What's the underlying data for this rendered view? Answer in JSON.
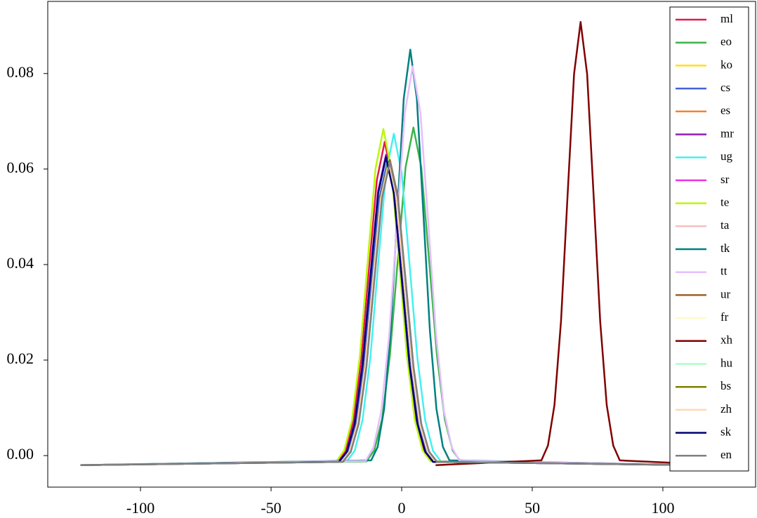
{
  "chart_data": {
    "type": "line",
    "xlim": [
      -135.5,
      135.5
    ],
    "ylim": [
      -0.0066,
      0.0951
    ],
    "xticks": [
      -100,
      -50,
      0,
      50,
      100
    ],
    "yticks": [
      {
        "value": 0,
        "label": "0.00"
      },
      {
        "value": 0.02,
        "label": "0.02"
      },
      {
        "value": 0.04,
        "label": "0.04"
      },
      {
        "value": 0.06,
        "label": "0.06"
      },
      {
        "value": 0.08,
        "label": "0.08"
      }
    ],
    "grid": false,
    "legend": "upper right",
    "series": [
      {
        "name": "ml",
        "color": "#e6194b",
        "x": [
          -123,
          -24.5,
          -21.5,
          -18.5,
          -15.5,
          -12.5,
          -9.5,
          -6.5,
          -3.5,
          -0.5,
          2.5,
          5.5,
          8.5,
          11.5,
          115
        ],
        "values": [
          -0.002,
          -0.0012,
          0.001,
          0.0072,
          0.02,
          0.0391,
          0.0577,
          0.0657,
          0.0577,
          0.0391,
          0.02,
          0.0072,
          0.001,
          -0.0012,
          -0.002
        ]
      },
      {
        "name": "eo",
        "color": "#3cb44b",
        "x": [
          -123,
          -13.5,
          -10.5,
          -7.5,
          -4.5,
          -1.5,
          1.5,
          4.5,
          7.5,
          10.5,
          13.5,
          16.5,
          19.5,
          22.5,
          115
        ],
        "values": [
          -0.002,
          -0.0012,
          0.0011,
          0.0076,
          0.021,
          0.0409,
          0.0604,
          0.0687,
          0.0604,
          0.0409,
          0.021,
          0.0076,
          0.0011,
          -0.0012,
          -0.002
        ]
      },
      {
        "name": "ko",
        "color": "#ffe119",
        "x": [
          -123,
          -23,
          -20,
          -17,
          -14,
          -11,
          -8,
          -5,
          -2,
          1,
          4,
          7,
          10,
          13,
          115
        ],
        "values": [
          -0.002,
          -0.0013,
          0.0008,
          0.0065,
          0.0185,
          0.0362,
          0.0536,
          0.061,
          0.0536,
          0.0362,
          0.0185,
          0.0065,
          0.0008,
          -0.0013,
          -0.002
        ]
      },
      {
        "name": "cs",
        "color": "#4363d8",
        "x": [
          -123,
          -23.5,
          -20.5,
          -17.5,
          -14.5,
          -11.5,
          -8.5,
          -5.5,
          -2.5,
          0.5,
          3.5,
          6.5,
          9.5,
          12.5,
          115
        ],
        "values": [
          -0.002,
          -0.0013,
          0.0008,
          0.0066,
          0.0186,
          0.0365,
          0.054,
          0.0615,
          0.054,
          0.0365,
          0.0186,
          0.0066,
          0.0008,
          -0.0013,
          -0.002
        ]
      },
      {
        "name": "es",
        "color": "#f58231",
        "x": [
          -123,
          -23,
          -20,
          -17,
          -14,
          -11,
          -8,
          -5,
          -2,
          1,
          4,
          7,
          10,
          13,
          115
        ],
        "values": [
          -0.002,
          -0.0013,
          0.0008,
          0.0066,
          0.0185,
          0.0363,
          0.0538,
          0.0612,
          0.0538,
          0.0363,
          0.0185,
          0.0066,
          0.0008,
          -0.0013,
          -0.002
        ]
      },
      {
        "name": "mr",
        "color": "#911eb4",
        "x": [
          -123,
          -24,
          -21,
          -18,
          -15,
          -12,
          -9,
          -6,
          -3,
          0,
          3,
          6,
          9,
          12,
          115
        ],
        "values": [
          -0.002,
          -0.0013,
          0.0009,
          0.0068,
          0.0191,
          0.0374,
          0.0554,
          0.063,
          0.0554,
          0.0374,
          0.0191,
          0.0068,
          0.0009,
          -0.0013,
          -0.002
        ]
      },
      {
        "name": "ug",
        "color": "#46f0f0",
        "x": [
          -123,
          -21,
          -18,
          -15,
          -12,
          -9,
          -6,
          -3,
          0,
          3,
          6,
          9,
          12,
          15,
          115
        ],
        "values": [
          -0.002,
          -0.0012,
          0.001,
          0.0074,
          0.0205,
          0.0401,
          0.0592,
          0.0674,
          0.0592,
          0.0401,
          0.0205,
          0.0074,
          0.001,
          -0.0012,
          -0.002
        ]
      },
      {
        "name": "sr",
        "color": "#f032e6",
        "x": [
          -123,
          -23,
          -20,
          -17,
          -14,
          -11,
          -8,
          -5,
          -2,
          1,
          4,
          7,
          10,
          13,
          115
        ],
        "values": [
          -0.002,
          -0.0013,
          0.0008,
          0.0066,
          0.0186,
          0.0364,
          0.0539,
          0.0613,
          0.0539,
          0.0364,
          0.0186,
          0.0066,
          0.0008,
          -0.0013,
          -0.002
        ]
      },
      {
        "name": "te",
        "color": "#bcf60c",
        "x": [
          -123,
          -25,
          -22,
          -19,
          -16,
          -13,
          -10,
          -7,
          -4,
          -1,
          2,
          5,
          8,
          11,
          115
        ],
        "values": [
          -0.002,
          -0.0012,
          0.0011,
          0.0075,
          0.0209,
          0.0407,
          0.0601,
          0.0684,
          0.0601,
          0.0407,
          0.0209,
          0.0075,
          0.0011,
          -0.0012,
          -0.002
        ]
      },
      {
        "name": "ta",
        "color": "#fabebe",
        "x": [
          -123,
          -23,
          -20,
          -17,
          -14,
          -11,
          -8,
          -5,
          -2,
          1,
          4,
          7,
          10,
          13,
          115
        ],
        "values": [
          -0.002,
          -0.0013,
          0.0008,
          0.0066,
          0.0186,
          0.0365,
          0.054,
          0.0614,
          0.054,
          0.0365,
          0.0186,
          0.0066,
          0.0008,
          -0.0013,
          -0.002
        ]
      },
      {
        "name": "tk",
        "color": "#008080",
        "x": [
          -123,
          -11.7,
          -9.2,
          -6.7,
          -4.2,
          -1.7,
          0.8,
          3.3,
          5.8,
          8.3,
          10.8,
          13.3,
          15.8,
          18.3,
          115
        ],
        "values": [
          -0.002,
          -0.001,
          0.0018,
          0.0098,
          0.0262,
          0.0508,
          0.0748,
          0.085,
          0.0748,
          0.0508,
          0.0262,
          0.0098,
          0.0018,
          -0.001,
          -0.002
        ]
      },
      {
        "name": "tt",
        "color": "#e6beff",
        "x": [
          -123,
          -13.8,
          -10.8,
          -7.8,
          -4.8,
          -1.8,
          1.2,
          4.2,
          7.2,
          10.2,
          13.2,
          16.2,
          19.2,
          22.2,
          115
        ],
        "values": [
          -0.002,
          -0.0011,
          0.0017,
          0.0093,
          0.0251,
          0.0486,
          0.0717,
          0.0815,
          0.0717,
          0.0486,
          0.0251,
          0.0093,
          0.0017,
          -0.0011,
          -0.002
        ]
      },
      {
        "name": "ur",
        "color": "#9a6324",
        "x": [
          -123,
          -22.5,
          -19.5,
          -16.5,
          -13.5,
          -10.5,
          -7.5,
          -4.5,
          -1.5,
          1.5,
          4.5,
          7.5,
          10.5,
          13.5,
          115
        ],
        "values": [
          -0.002,
          -0.0013,
          0.0008,
          0.0066,
          0.0187,
          0.0368,
          0.0544,
          0.0619,
          0.0544,
          0.0368,
          0.0187,
          0.0066,
          0.0008,
          -0.0013,
          -0.002
        ]
      },
      {
        "name": "fr",
        "color": "#fffac8",
        "x": [
          -123,
          -23,
          -20,
          -17,
          -14,
          -11,
          -8,
          -5,
          -2,
          1,
          4,
          7,
          10,
          13,
          115
        ],
        "values": [
          -0.002,
          -0.0013,
          0.0008,
          0.0065,
          0.0185,
          0.0363,
          0.0537,
          0.0611,
          0.0537,
          0.0363,
          0.0185,
          0.0065,
          0.0008,
          -0.0013,
          -0.002
        ]
      },
      {
        "name": "xh",
        "color": "#800000",
        "x": [
          13,
          53.5,
          56,
          58.5,
          61,
          63.5,
          66,
          68.5,
          71,
          73.5,
          76,
          78.5,
          81,
          83.5,
          124
        ],
        "values": [
          -0.002,
          -0.001,
          0.0021,
          0.0106,
          0.0281,
          0.0543,
          0.0799,
          0.0908,
          0.0799,
          0.0543,
          0.0281,
          0.0106,
          0.0021,
          -0.001,
          -0.002
        ]
      },
      {
        "name": "hu",
        "color": "#aaffc3",
        "x": [
          -123,
          -23,
          -20,
          -17,
          -14,
          -11,
          -8,
          -5,
          -2,
          1,
          4,
          7,
          10,
          13,
          115
        ],
        "values": [
          -0.002,
          -0.0013,
          0.0008,
          0.0066,
          0.0185,
          0.0363,
          0.0538,
          0.0612,
          0.0538,
          0.0363,
          0.0185,
          0.0066,
          0.0008,
          -0.0013,
          -0.002
        ]
      },
      {
        "name": "bs",
        "color": "#808000",
        "x": [
          -123,
          -23,
          -20,
          -17,
          -14,
          -11,
          -8,
          -5,
          -2,
          1,
          4,
          7,
          10,
          13,
          115
        ],
        "values": [
          -0.002,
          -0.0013,
          0.0008,
          0.0066,
          0.0187,
          0.0366,
          0.0541,
          0.0616,
          0.0541,
          0.0366,
          0.0187,
          0.0066,
          0.0008,
          -0.0013,
          -0.002
        ]
      },
      {
        "name": "zh",
        "color": "#ffd8b1",
        "x": [
          -123,
          -23,
          -20,
          -17,
          -14,
          -11,
          -8,
          -5,
          -2,
          1,
          4,
          7,
          10,
          13,
          115
        ],
        "values": [
          -0.002,
          -0.0013,
          0.0008,
          0.0065,
          0.0185,
          0.0363,
          0.0537,
          0.0611,
          0.0537,
          0.0363,
          0.0185,
          0.0065,
          0.0008,
          -0.0013,
          -0.002
        ]
      },
      {
        "name": "sk",
        "color": "#000075",
        "x": [
          -123,
          -24,
          -21,
          -18,
          -15,
          -12,
          -9,
          -6,
          -3,
          0,
          3,
          6,
          9,
          12,
          115
        ],
        "values": [
          -0.002,
          -0.0013,
          0.0008,
          0.0067,
          0.0189,
          0.0371,
          0.0549,
          0.0625,
          0.0549,
          0.0371,
          0.0189,
          0.0067,
          0.0008,
          -0.0013,
          -0.002
        ]
      },
      {
        "name": "en",
        "color": "#808080",
        "x": [
          -123,
          -22.5,
          -19.5,
          -16.5,
          -13.5,
          -10.5,
          -7.5,
          -4.5,
          -1.5,
          1.5,
          4.5,
          7.5,
          10.5,
          13.5,
          115
        ],
        "values": [
          -0.002,
          -0.0013,
          0.0008,
          0.0066,
          0.0186,
          0.0365,
          0.054,
          0.0615,
          0.054,
          0.0365,
          0.0186,
          0.0066,
          0.0008,
          -0.0013,
          -0.002
        ]
      }
    ]
  }
}
